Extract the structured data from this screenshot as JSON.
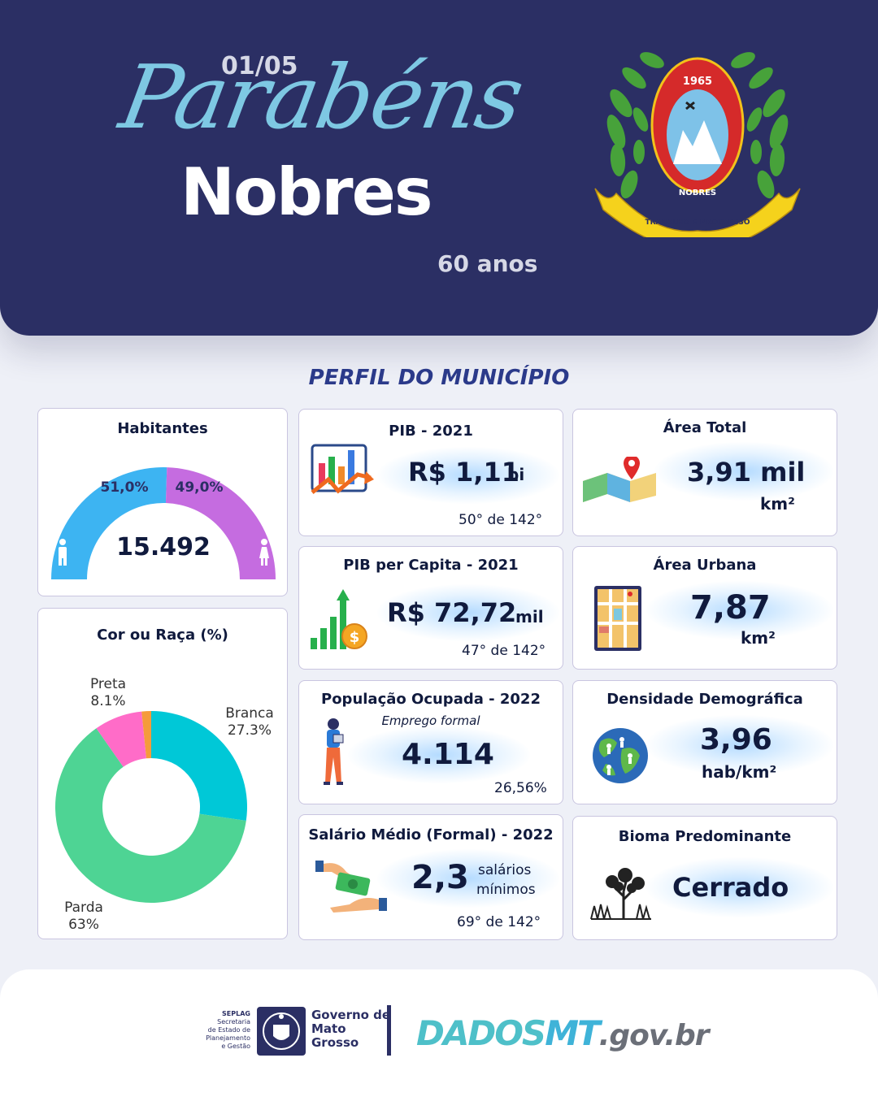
{
  "header": {
    "date": "01/05",
    "greeting": "Parabéns",
    "city": "Nobres",
    "anniversary": "60 anos",
    "emblem": {
      "year": "1965",
      "name": "NOBRES",
      "motto": "TRABALHO E PROGRESSO",
      "colors": {
        "wreath": "#47a23a",
        "shield_red": "#d52a2a",
        "shield_blue": "#7ec2e8",
        "ribbon": "#f5d21c"
      }
    }
  },
  "section_title": "PERFIL DO MUNICÍPIO",
  "habitantes": {
    "title": "Habitantes",
    "total": "15.492",
    "male_label": "51,0%",
    "female_label": "49,0%",
    "male_share": 0.51,
    "female_share": 0.49,
    "colors": {
      "male": "#3db4f2",
      "female": "#c56ce0"
    },
    "icons": [
      "man-icon",
      "woman-icon"
    ]
  },
  "cor_raca": {
    "title": "Cor ou Raça (%)",
    "slices": [
      {
        "name": "Branca",
        "label": "27.3%",
        "value": 27.3,
        "color": "#00c8d7"
      },
      {
        "name": "Parda",
        "label": "63%",
        "value": 63,
        "color": "#4ed494"
      },
      {
        "name": "Preta",
        "label": "8.1%",
        "value": 8.1,
        "color": "#ff6cc8"
      },
      {
        "name": "",
        "label": "",
        "value": 1.6,
        "color": "#f59b3b"
      }
    ]
  },
  "pib": {
    "title": "PIB - 2021",
    "value": "R$ 1,11",
    "unit": "bi",
    "rank": "50° de 142°",
    "icon": "bar-chart-arrow-icon"
  },
  "pib_per_capita": {
    "title": "PIB per Capita - 2021",
    "value": "R$ 72,72",
    "unit": "mil",
    "rank": "47° de 142°",
    "icon": "growth-coin-icon"
  },
  "populacao_ocupada": {
    "title": "População  Ocupada - 2022",
    "subtitle": "Emprego formal",
    "value": "4.114",
    "rank": "26,56%",
    "icon": "worker-tablet-icon"
  },
  "salario_medio": {
    "title": "Salário Médio (Formal) - 2022",
    "value": "2,3",
    "unit_line1": "salários",
    "unit_line2": "mínimos",
    "rank": "69° de 142°",
    "icon": "money-hands-icon"
  },
  "area_total": {
    "title": "Área Total",
    "value": "3,91 mil",
    "unit": "km²",
    "icon": "map-pin-icon"
  },
  "area_urbana": {
    "title": "Área Urbana",
    "value": "7,87",
    "unit": "km²",
    "icon": "city-map-icon"
  },
  "densidade": {
    "title": "Densidade Demográfica",
    "value": "3,96",
    "unit": "hab/km²",
    "icon": "globe-people-icon"
  },
  "bioma": {
    "title": "Bioma Predominante",
    "value": "Cerrado",
    "icon": "cerrado-tree-icon"
  },
  "footer": {
    "seplag_sigla": "SEPLAG",
    "seplag_lines": [
      "Secretaria",
      "de Estado de",
      "Planejamento",
      "e Gestão"
    ],
    "gov_lines": [
      "Governo de",
      "Mato",
      "Grosso"
    ],
    "brand_part1": "DADOS",
    "brand_part2": "MT",
    "brand_part3": ".gov.br"
  }
}
